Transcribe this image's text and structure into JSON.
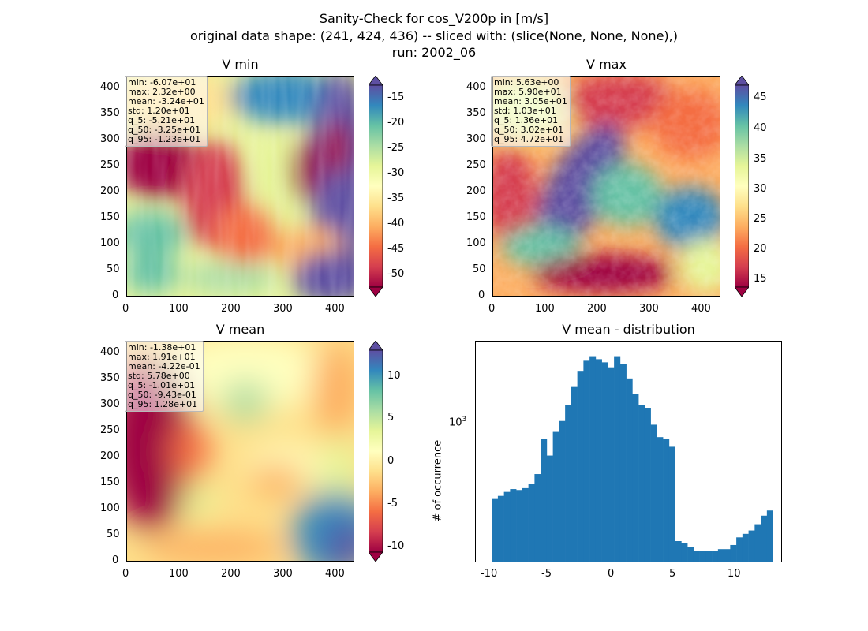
{
  "figure": {
    "title_lines": [
      "Sanity-Check for cos_V200p in [m/s]",
      "original data shape: (241, 424, 436) -- sliced with: (slice(None, None, None),)",
      "run: 2002_06"
    ]
  },
  "panels": {
    "vmin": {
      "title": "V min",
      "stats": [
        "min: -6.07e+01",
        "max: 2.32e+00",
        "mean: -3.24e+01",
        "std: 1.20e+01",
        "q_5: -5.21e+01",
        "q_50: -3.25e+01",
        "q_95: -1.23e+01"
      ],
      "x_ticks": [
        "0",
        "100",
        "200",
        "300",
        "400"
      ],
      "y_ticks": [
        "0",
        "50",
        "100",
        "150",
        "200",
        "250",
        "300",
        "350",
        "400"
      ],
      "cbar_ticks": [
        "-15",
        "-20",
        "-25",
        "-30",
        "-35",
        "-40",
        "-45",
        "-50"
      ]
    },
    "vmax": {
      "title": "V max",
      "stats": [
        "min: 5.63e+00",
        "max: 5.90e+01",
        "mean: 3.05e+01",
        "std: 1.03e+01",
        "q_5: 1.36e+01",
        "q_50: 3.02e+01",
        "q_95: 4.72e+01"
      ],
      "x_ticks": [
        "0",
        "100",
        "200",
        "300",
        "400"
      ],
      "y_ticks": [
        "0",
        "50",
        "100",
        "150",
        "200",
        "250",
        "300",
        "350",
        "400"
      ],
      "cbar_ticks": [
        "45",
        "40",
        "35",
        "30",
        "25",
        "20",
        "15"
      ]
    },
    "vmean": {
      "title": "V mean",
      "stats": [
        "min: -1.38e+01",
        "max: 1.91e+01",
        "mean: -4.22e-01",
        "std: 5.78e+00",
        "q_5: -1.01e+01",
        "q_50: -9.43e-01",
        "q_95: 1.28e+01"
      ],
      "x_ticks": [
        "0",
        "100",
        "200",
        "300",
        "400"
      ],
      "y_ticks": [
        "0",
        "50",
        "100",
        "150",
        "200",
        "250",
        "300",
        "350",
        "400"
      ],
      "cbar_ticks": [
        "10",
        "5",
        "0",
        "-5",
        "-10"
      ]
    },
    "hist": {
      "title": "V mean - distribution",
      "ylabel": "# of occurrence",
      "x_ticks": [
        "-10",
        "-5",
        "0",
        "5",
        "10"
      ],
      "y_tick_base": "10",
      "y_tick_exp": "3"
    }
  },
  "colors": {
    "hist_bar": "#1f77b4",
    "spectral": [
      "#9e0142",
      "#d53e4f",
      "#f46d43",
      "#fdae61",
      "#fee08b",
      "#ffffbf",
      "#e6f598",
      "#abdda4",
      "#66c2a5",
      "#3288bd",
      "#5e4fa2"
    ]
  },
  "chart_data": [
    {
      "type": "heatmap",
      "title": "V min",
      "xlim": [
        0,
        436
      ],
      "ylim": [
        0,
        424
      ],
      "colorbar_range": [
        -52,
        -12
      ],
      "colormap": "Spectral",
      "stats": {
        "min": -60.7,
        "max": 2.32,
        "mean": -32.4,
        "std": 12.0,
        "q_5": -52.1,
        "q_50": -32.5,
        "q_95": -12.3
      }
    },
    {
      "type": "heatmap",
      "title": "V max",
      "xlim": [
        0,
        436
      ],
      "ylim": [
        0,
        424
      ],
      "colorbar_range": [
        13,
        48
      ],
      "colormap": "Spectral",
      "stats": {
        "min": 5.63,
        "max": 59.0,
        "mean": 30.5,
        "std": 10.3,
        "q_5": 13.6,
        "q_50": 30.2,
        "q_95": 47.2
      }
    },
    {
      "type": "heatmap",
      "title": "V mean",
      "xlim": [
        0,
        436
      ],
      "ylim": [
        0,
        424
      ],
      "colorbar_range": [
        -11,
        13
      ],
      "colormap": "Spectral",
      "stats": {
        "min": -13.8,
        "max": 19.1,
        "mean": -0.422,
        "std": 5.78,
        "q_5": -10.1,
        "q_50": -0.943,
        "q_95": 12.8
      }
    },
    {
      "type": "bar",
      "title": "V mean - distribution",
      "ylabel": "# of occurrence",
      "yscale": "log",
      "xlim": [
        -11.3,
        13.8
      ],
      "ylim": [
        140,
        3000
      ],
      "x": [
        -10.0,
        -9.5,
        -9.0,
        -8.5,
        -8.0,
        -7.5,
        -7.0,
        -6.5,
        -6.0,
        -5.5,
        -5.0,
        -4.5,
        -4.0,
        -3.5,
        -3.0,
        -2.5,
        -2.0,
        -1.5,
        -1.0,
        -0.5,
        0.0,
        0.5,
        1.0,
        1.5,
        2.0,
        2.5,
        3.0,
        3.5,
        4.0,
        4.5,
        5.0,
        5.5,
        6.0,
        6.5,
        7.0,
        7.5,
        8.0,
        8.5,
        9.0,
        9.5,
        10.0,
        10.5,
        11.0,
        11.5,
        12.0,
        12.5
      ],
      "values": [
        340,
        355,
        375,
        390,
        385,
        395,
        420,
        480,
        780,
        620,
        860,
        1000,
        1250,
        1600,
        2000,
        2300,
        2450,
        2350,
        2250,
        2100,
        2450,
        2200,
        1800,
        1450,
        1250,
        1200,
        950,
        800,
        780,
        700,
        190,
        185,
        175,
        165,
        165,
        165,
        165,
        170,
        170,
        180,
        200,
        210,
        220,
        240,
        270,
        290
      ]
    }
  ]
}
